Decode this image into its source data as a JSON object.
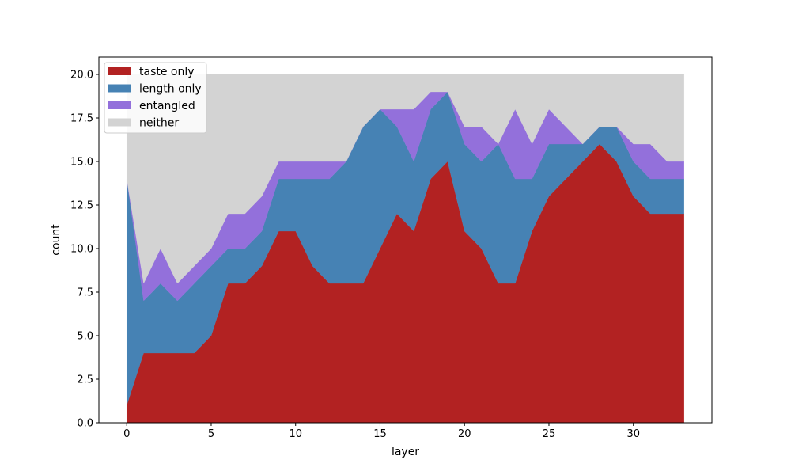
{
  "chart_data": {
    "type": "area",
    "stacked": true,
    "xlabel": "layer",
    "ylabel": "count",
    "xlim": [
      -1.65,
      34.65
    ],
    "ylim": [
      0,
      21
    ],
    "x_ticks": [
      0,
      5,
      10,
      15,
      20,
      25,
      30
    ],
    "x_tick_labels": [
      "0",
      "5",
      "10",
      "15",
      "20",
      "25",
      "30"
    ],
    "y_ticks": [
      0,
      2.5,
      5,
      7.5,
      10,
      12.5,
      15,
      17.5,
      20
    ],
    "y_tick_labels": [
      "0.0",
      "2.5",
      "5.0",
      "7.5",
      "10.0",
      "12.5",
      "15.0",
      "17.5",
      "20.0"
    ],
    "legend_position": "top-left",
    "x": [
      0,
      1,
      2,
      3,
      4,
      5,
      6,
      7,
      8,
      9,
      10,
      11,
      12,
      13,
      14,
      15,
      16,
      17,
      18,
      19,
      20,
      21,
      22,
      23,
      24,
      25,
      26,
      27,
      28,
      29,
      30,
      31,
      32,
      33
    ],
    "series": [
      {
        "name": "taste only",
        "color": "#b22222",
        "values": [
          1,
          4,
          4,
          4,
          4,
          5,
          8,
          8,
          9,
          11,
          11,
          9,
          8,
          8,
          8,
          10,
          12,
          11,
          14,
          15,
          11,
          10,
          8,
          8,
          11,
          13,
          14,
          15,
          16,
          15,
          13,
          12,
          12,
          12
        ]
      },
      {
        "name": "length only",
        "color": "#4682b4",
        "values": [
          13,
          3,
          4,
          3,
          4,
          4,
          2,
          2,
          2,
          3,
          3,
          5,
          6,
          7,
          9,
          8,
          5,
          4,
          4,
          4,
          5,
          5,
          8,
          6,
          3,
          3,
          2,
          1,
          1,
          2,
          2,
          2,
          2,
          2
        ]
      },
      {
        "name": "entangled",
        "color": "#9370db",
        "values": [
          0,
          1,
          2,
          1,
          1,
          1,
          2,
          2,
          2,
          1,
          1,
          1,
          1,
          0,
          0,
          0,
          1,
          3,
          1,
          0,
          1,
          2,
          0,
          4,
          2,
          2,
          1,
          0,
          0,
          0,
          1,
          2,
          1,
          1
        ]
      },
      {
        "name": "neither",
        "color": "#d3d3d3",
        "values": [
          6,
          12,
          10,
          12,
          11,
          10,
          8,
          8,
          7,
          5,
          5,
          5,
          5,
          5,
          3,
          2,
          2,
          2,
          1,
          1,
          3,
          3,
          4,
          2,
          4,
          2,
          3,
          4,
          3,
          3,
          4,
          4,
          5,
          5
        ]
      }
    ]
  }
}
